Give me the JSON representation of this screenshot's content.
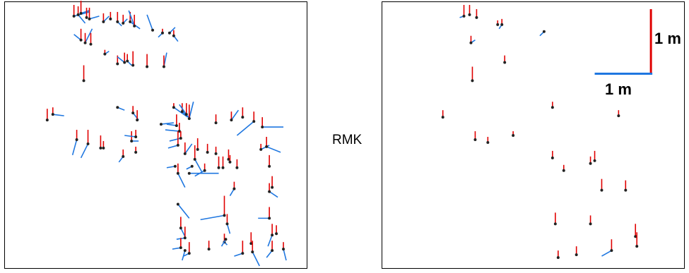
{
  "center_label": "RMK",
  "colors": {
    "vertical": "#e00000",
    "horizontal": "#1f77e0",
    "point": "#222222"
  },
  "scale_bar": {
    "vertical_label": "1 m",
    "horizontal_label": "1 m"
  },
  "left_panel": {
    "vectors": [
      [
        98,
        20,
        -16,
        22,
        -6
      ],
      [
        104,
        18,
        -12,
        10,
        12
      ],
      [
        108,
        16,
        -18,
        12,
        -4
      ],
      [
        116,
        22,
        -14,
        0,
        0
      ],
      [
        120,
        24,
        -16,
        14,
        -4
      ],
      [
        140,
        28,
        -12,
        8,
        -8
      ],
      [
        150,
        24,
        -10,
        0,
        0
      ],
      [
        160,
        28,
        -14,
        6,
        6
      ],
      [
        168,
        30,
        -12,
        6,
        -6
      ],
      [
        178,
        28,
        -14,
        14,
        10
      ],
      [
        184,
        34,
        -16,
        -8,
        -22
      ],
      [
        210,
        40,
        0,
        -8,
        -22
      ],
      [
        224,
        44,
        -6,
        -6,
        6
      ],
      [
        234,
        44,
        0,
        8,
        -8
      ],
      [
        240,
        48,
        -8,
        6,
        8
      ],
      [
        108,
        54,
        -16,
        -10,
        -8
      ],
      [
        114,
        58,
        -14,
        10,
        -20
      ],
      [
        122,
        60,
        -16,
        0,
        0
      ],
      [
        142,
        74,
        -6,
        6,
        -4
      ],
      [
        160,
        88,
        -12,
        0,
        0
      ],
      [
        170,
        86,
        -14,
        -10,
        -8
      ],
      [
        174,
        84,
        -10,
        6,
        6
      ],
      [
        182,
        90,
        -20,
        0,
        0
      ],
      [
        202,
        92,
        -18,
        0,
        0
      ],
      [
        226,
        92,
        -16,
        4,
        -20
      ],
      [
        112,
        112,
        -22,
        0,
        0
      ],
      [
        60,
        168,
        -16,
        0,
        0
      ],
      [
        68,
        160,
        -10,
        16,
        2
      ],
      [
        160,
        150,
        0,
        10,
        4
      ],
      [
        182,
        158,
        -10,
        8,
        10
      ],
      [
        188,
        168,
        -14,
        0,
        0
      ],
      [
        240,
        150,
        -6,
        20,
        14
      ],
      [
        252,
        156,
        -12,
        12,
        10
      ],
      [
        258,
        160,
        -16,
        -10,
        -14
      ],
      [
        262,
        166,
        -20,
        6,
        -24
      ],
      [
        222,
        174,
        0,
        18,
        -2
      ],
      [
        244,
        176,
        -16,
        -14,
        -2
      ],
      [
        300,
        172,
        -12,
        0,
        0
      ],
      [
        322,
        168,
        -12,
        10,
        -14
      ],
      [
        338,
        164,
        -14,
        0,
        0
      ],
      [
        354,
        170,
        -14,
        -24,
        20
      ],
      [
        366,
        178,
        -14,
        30,
        0
      ],
      [
        102,
        196,
        -14,
        -6,
        22
      ],
      [
        118,
        202,
        -20,
        -10,
        20
      ],
      [
        136,
        208,
        -18,
        -2,
        0
      ],
      [
        140,
        208,
        -10,
        0,
        0
      ],
      [
        180,
        198,
        -14,
        10,
        0
      ],
      [
        186,
        192,
        -10,
        -16,
        -2
      ],
      [
        248,
        184,
        -12,
        -20,
        -2
      ],
      [
        250,
        194,
        -10,
        -16,
        4
      ],
      [
        246,
        204,
        -20,
        -14,
        4
      ],
      [
        274,
        210,
        -16,
        0,
        0
      ],
      [
        288,
        214,
        -12,
        0,
        0
      ],
      [
        300,
        216,
        -10,
        0,
        0
      ],
      [
        168,
        220,
        -10,
        -6,
        8
      ],
      [
        186,
        214,
        -8,
        0,
        0
      ],
      [
        256,
        216,
        -16,
        10,
        -14
      ],
      [
        270,
        224,
        -20,
        10,
        18
      ],
      [
        318,
        224,
        -14,
        0,
        0
      ],
      [
        364,
        210,
        -8,
        12,
        -6
      ],
      [
        372,
        206,
        -14,
        20,
        8
      ],
      [
        242,
        234,
        0,
        -12,
        2
      ],
      [
        266,
        234,
        0,
        -8,
        4
      ],
      [
        284,
        240,
        -10,
        -14,
        8
      ],
      [
        304,
        236,
        -16,
        0,
        0
      ],
      [
        310,
        236,
        -16,
        0,
        0
      ],
      [
        320,
        228,
        -10,
        0,
        0
      ],
      [
        330,
        236,
        -12,
        0,
        0
      ],
      [
        246,
        244,
        -14,
        10,
        20
      ],
      [
        262,
        244,
        0,
        42,
        0
      ],
      [
        376,
        234,
        -16,
        0,
        0
      ],
      [
        380,
        264,
        -16,
        0,
        0
      ],
      [
        326,
        266,
        -10,
        -6,
        10
      ],
      [
        246,
        288,
        0,
        16,
        20
      ],
      [
        376,
        270,
        -12,
        12,
        8
      ],
      [
        312,
        304,
        -28,
        -34,
        6
      ],
      [
        316,
        316,
        -14,
        4,
        14
      ],
      [
        376,
        308,
        -16,
        -16,
        0
      ],
      [
        380,
        332,
        -16,
        -6,
        16
      ],
      [
        386,
        330,
        -12,
        0,
        0
      ],
      [
        250,
        322,
        -16,
        6,
        12
      ],
      [
        256,
        336,
        -16,
        -12,
        2
      ],
      [
        312,
        342,
        -12,
        4,
        4
      ],
      [
        314,
        338,
        0,
        -6,
        10
      ],
      [
        350,
        344,
        -16,
        0,
        0
      ],
      [
        250,
        350,
        -14,
        -12,
        2
      ],
      [
        256,
        354,
        0,
        -4,
        14
      ],
      [
        262,
        358,
        -16,
        -8,
        4
      ],
      [
        290,
        352,
        -12,
        0,
        0
      ],
      [
        338,
        358,
        -18,
        -12,
        4
      ],
      [
        352,
        356,
        -16,
        10,
        20
      ],
      [
        380,
        354,
        -14,
        -8,
        10
      ],
      [
        396,
        352,
        -10,
        4,
        16
      ]
    ]
  },
  "right_panel": {
    "vectors": [
      [
        116,
        20,
        -16,
        -6,
        2
      ],
      [
        124,
        18,
        -14,
        0,
        0
      ],
      [
        134,
        22,
        -12,
        0,
        0
      ],
      [
        164,
        32,
        -6,
        0,
        0
      ],
      [
        170,
        32,
        -8,
        -4,
        6
      ],
      [
        230,
        42,
        0,
        -6,
        6
      ],
      [
        126,
        58,
        -10,
        6,
        -4
      ],
      [
        174,
        86,
        -10,
        0,
        0
      ],
      [
        128,
        112,
        -20,
        0,
        0
      ],
      [
        242,
        150,
        -8,
        0,
        0
      ],
      [
        336,
        162,
        -8,
        0,
        0
      ],
      [
        86,
        164,
        -10,
        0,
        0
      ],
      [
        132,
        196,
        -12,
        0,
        0
      ],
      [
        150,
        200,
        -8,
        0,
        0
      ],
      [
        186,
        190,
        -6,
        0,
        0
      ],
      [
        242,
        222,
        -10,
        0,
        0
      ],
      [
        258,
        240,
        -8,
        0,
        0
      ],
      [
        296,
        230,
        -10,
        0,
        0
      ],
      [
        302,
        226,
        -14,
        0,
        0
      ],
      [
        312,
        268,
        -16,
        0,
        0
      ],
      [
        346,
        268,
        -14,
        0,
        0
      ],
      [
        246,
        316,
        -16,
        0,
        0
      ],
      [
        296,
        316,
        -12,
        0,
        0
      ],
      [
        360,
        334,
        -18,
        0,
        0
      ],
      [
        362,
        348,
        -20,
        0,
        0
      ],
      [
        276,
        360,
        -12,
        0,
        0
      ],
      [
        326,
        354,
        -16,
        -14,
        8
      ],
      [
        250,
        364,
        -10,
        0,
        0
      ]
    ]
  }
}
